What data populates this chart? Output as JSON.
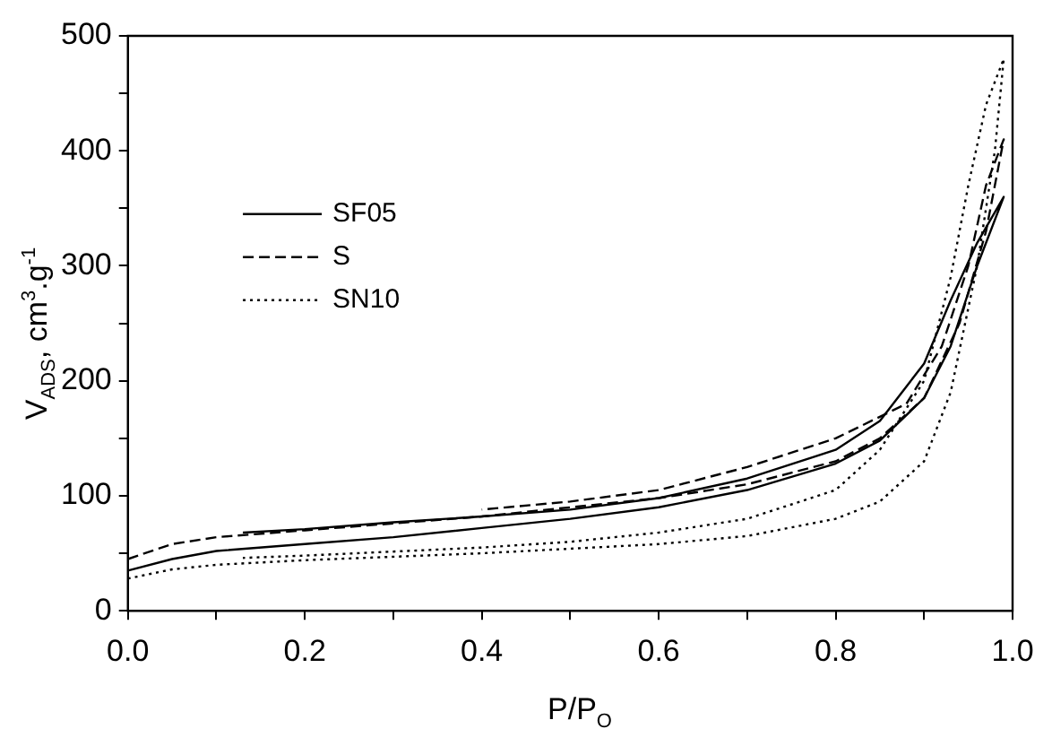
{
  "chart_data": {
    "type": "line",
    "xlabel": "P/P$_{O}$",
    "ylabel": "V$_{ADS}$, cm$^{3}$.g$^{-1}$",
    "xlim": [
      0,
      1
    ],
    "ylim": [
      0,
      500
    ],
    "xticks": [
      {
        "value": 0,
        "label": "0.0"
      },
      {
        "value": 0.1,
        "label": null
      },
      {
        "value": 0.2,
        "label": "0.2"
      },
      {
        "value": 0.3,
        "label": null
      },
      {
        "value": 0.4,
        "label": "0.4"
      },
      {
        "value": 0.5,
        "label": null
      },
      {
        "value": 0.6,
        "label": "0.6"
      },
      {
        "value": 0.7,
        "label": null
      },
      {
        "value": 0.8,
        "label": "0.8"
      },
      {
        "value": 0.9,
        "label": null
      },
      {
        "value": 1,
        "label": "1.0"
      }
    ],
    "yticks": [
      0,
      {
        "value": 50,
        "label": null
      },
      100,
      {
        "value": 150,
        "label": null
      },
      200,
      {
        "value": 250,
        "label": null
      },
      300,
      {
        "value": 350,
        "label": null
      },
      400,
      {
        "value": 450,
        "label": null
      },
      500
    ],
    "grid": false,
    "legend": "left",
    "series": [
      {
        "name": "SF05",
        "color": "#000000",
        "line_style": "solid",
        "x": [
          0.0,
          0.05,
          0.1,
          0.2,
          0.3,
          0.4,
          0.5,
          0.6,
          0.7,
          0.8,
          0.85,
          0.9,
          0.93,
          0.96,
          0.99,
          0.96,
          0.93,
          0.9,
          0.85,
          0.8,
          0.7,
          0.6,
          0.5,
          0.4,
          0.3,
          0.2,
          0.13
        ],
        "values": [
          35,
          45,
          52,
          58,
          64,
          72,
          80,
          90,
          105,
          128,
          148,
          185,
          230,
          300,
          360,
          320,
          270,
          215,
          165,
          140,
          115,
          98,
          88,
          82,
          77,
          71,
          68
        ]
      },
      {
        "name": "S",
        "color": "#000000",
        "line_style": "dashed",
        "x": [
          0.0,
          0.05,
          0.1,
          0.2,
          0.4,
          0.6,
          0.7,
          0.8,
          0.85,
          0.9,
          0.94,
          0.97,
          0.99,
          0.97,
          0.95,
          0.92,
          0.88,
          0.8,
          0.7,
          0.6,
          0.5,
          0.4
        ],
        "values": [
          45,
          58,
          64,
          70,
          82,
          98,
          110,
          130,
          150,
          185,
          250,
          330,
          410,
          370,
          300,
          230,
          180,
          150,
          125,
          105,
          95,
          88
        ]
      },
      {
        "name": "SN10",
        "color": "#000000",
        "line_style": "dotted",
        "x": [
          0.0,
          0.05,
          0.1,
          0.2,
          0.4,
          0.6,
          0.7,
          0.8,
          0.85,
          0.9,
          0.93,
          0.96,
          0.98,
          0.99,
          0.97,
          0.95,
          0.93,
          0.9,
          0.85,
          0.8,
          0.7,
          0.6,
          0.5,
          0.4,
          0.2,
          0.13
        ],
        "values": [
          28,
          36,
          40,
          44,
          50,
          58,
          65,
          80,
          95,
          130,
          190,
          300,
          400,
          480,
          440,
          370,
          290,
          200,
          140,
          105,
          80,
          68,
          60,
          55,
          48,
          46
        ]
      }
    ]
  }
}
